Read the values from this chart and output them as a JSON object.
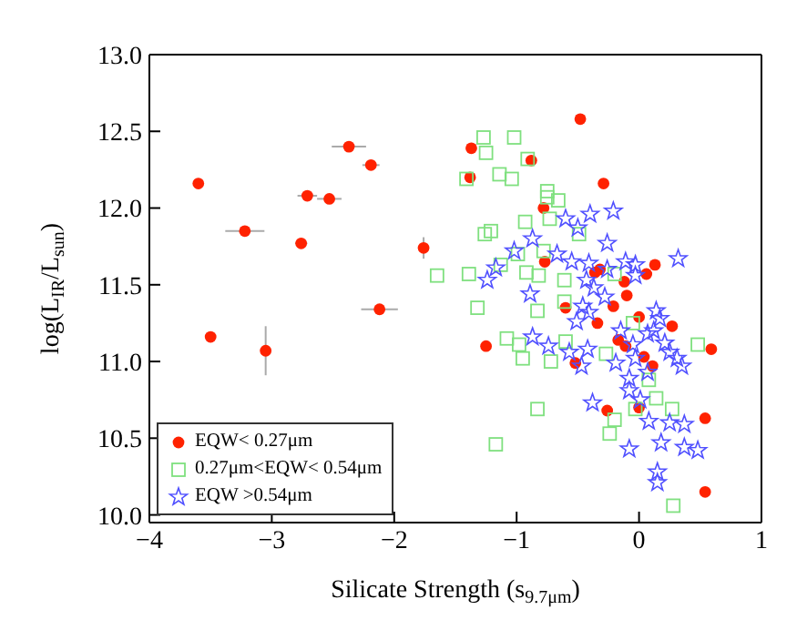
{
  "chart_data": {
    "type": "scatter",
    "xlabel": "Silicate Strength (s$_{9.7μm}$)",
    "ylabel": "log(L$_{IR}$/L$_{sun}$)",
    "xlim": [
      -4,
      1
    ],
    "ylim": [
      9.95,
      13
    ],
    "xticks": [
      -4,
      -3,
      -2,
      -1,
      0,
      1
    ],
    "yticks": [
      {
        "value": 10,
        "label": "10.0"
      },
      {
        "value": 10.5,
        "label": "10.5"
      },
      {
        "value": 11,
        "label": "11.0"
      },
      {
        "value": 11.5,
        "label": "11.5"
      },
      {
        "value": 12,
        "label": "12.0"
      },
      {
        "value": 12.5,
        "label": "12.5"
      },
      {
        "value": 13,
        "label": "13.0"
      }
    ],
    "grid": false,
    "legend": "bottom left",
    "series": [
      {
        "name": "EQW< 0.27μm",
        "color": "#ff2200",
        "marker": "circle",
        "x": [
          -3.6,
          -3.5,
          -3.22,
          -3.05,
          -2.76,
          -2.71,
          -2.53,
          -2.37,
          -2.19,
          -2.12,
          -1.76,
          -0.48,
          -1.37,
          -0.88,
          -1.38,
          -0.29,
          -0.78,
          -0.77,
          -0.32,
          -0.36,
          -0.12,
          0.06,
          0.13,
          -0.6,
          -0.21,
          -0.1,
          0,
          -0.34,
          0.27,
          -1.25,
          -0.17,
          -0.11,
          0.59,
          0.04,
          -0.52,
          0.11,
          0,
          -0.26,
          0.54,
          0.54
        ],
        "values": [
          12.16,
          11.16,
          11.85,
          11.07,
          11.77,
          12.08,
          12.06,
          12.4,
          12.28,
          11.34,
          11.74,
          12.58,
          12.39,
          12.31,
          12.2,
          12.16,
          12,
          11.65,
          11.6,
          11.58,
          11.52,
          11.57,
          11.63,
          11.35,
          11.36,
          11.43,
          11.29,
          11.25,
          11.23,
          11.1,
          11.14,
          11.1,
          11.08,
          11.03,
          10.99,
          10.97,
          10.7,
          10.68,
          10.63,
          10.15
        ],
        "xerrors": [
          null,
          null,
          0.16,
          null,
          0.05,
          0.08,
          0.1,
          0.14,
          0.07,
          0.15,
          null,
          null,
          null,
          null,
          null,
          null,
          null,
          null,
          null,
          null,
          null,
          null,
          null,
          null,
          null,
          null,
          null,
          null,
          null,
          null,
          null,
          null,
          null,
          null,
          null,
          null,
          null,
          null,
          null,
          null
        ],
        "errors": [
          null,
          null,
          null,
          0.16,
          null,
          null,
          null,
          null,
          null,
          null,
          0.07,
          null,
          null,
          null,
          null,
          null,
          null,
          null,
          null,
          null,
          null,
          null,
          null,
          null,
          null,
          null,
          null,
          null,
          null,
          null,
          null,
          null,
          null,
          null,
          null,
          null,
          null,
          null,
          null,
          null
        ]
      },
      {
        "name": "0.27μm<EQW< 0.54μm",
        "color": "#7fe07f",
        "marker": "square",
        "x": [
          -1.65,
          -1.27,
          -1.02,
          -1.25,
          -0.91,
          -1.41,
          -1.14,
          -1.04,
          -0.75,
          -0.75,
          -0.66,
          -0.73,
          -0.93,
          -1.21,
          -1.26,
          -0.49,
          -0.99,
          -0.78,
          -1.13,
          -1.39,
          -0.92,
          -0.61,
          -0.82,
          -0.2,
          -1.32,
          -0.83,
          -0.61,
          -1.08,
          -0.98,
          -0.95,
          -0.72,
          -0.6,
          -0.27,
          0.08,
          0.14,
          0.27,
          -0.83,
          -0.2,
          -0.24,
          -1.17,
          0.48,
          0.28,
          -0.05,
          -0.03
        ],
        "values": [
          11.56,
          12.46,
          12.46,
          12.36,
          12.32,
          12.19,
          12.22,
          12.19,
          12.11,
          12.07,
          12.05,
          11.93,
          11.91,
          11.85,
          11.83,
          11.83,
          11.7,
          11.72,
          11.63,
          11.57,
          11.58,
          11.53,
          11.56,
          11.57,
          11.35,
          11.33,
          11.39,
          11.15,
          11.11,
          11.02,
          11,
          11.13,
          11.05,
          10.88,
          10.76,
          10.69,
          10.69,
          10.62,
          10.53,
          10.46,
          11.11,
          10.06,
          11.25,
          10.69
        ]
      },
      {
        "name": "EQW >0.54μm",
        "color": "#5050ff",
        "marker": "star",
        "x": [
          -0.6,
          -0.4,
          -0.21,
          -0.5,
          -0.87,
          -0.26,
          -1.02,
          -0.67,
          -0.55,
          -0.41,
          -0.11,
          -0.03,
          0.32,
          -1.17,
          -1.24,
          -0.43,
          -0.26,
          -0.03,
          -0.89,
          -0.46,
          -0.37,
          -0.28,
          -0.51,
          -0.41,
          0.14,
          0.17,
          0.12,
          0.07,
          -0.74,
          -0.87,
          -0.57,
          -0.47,
          -0.42,
          -0.19,
          -0.15,
          -0.05,
          -0.03,
          0.21,
          0.25,
          0.31,
          0.35,
          0.07,
          -0.08,
          -0.08,
          -0.38,
          0.01,
          0.08,
          0.25,
          0.37,
          0.18,
          0.37,
          0.48,
          -0.08,
          0.15,
          0.15
        ],
        "values": [
          11.93,
          11.96,
          11.98,
          11.87,
          11.8,
          11.77,
          11.72,
          11.7,
          11.65,
          11.64,
          11.65,
          11.63,
          11.67,
          11.61,
          11.53,
          11.53,
          11.6,
          11.56,
          11.44,
          11.36,
          11.48,
          11.42,
          11.26,
          11.32,
          11.33,
          11.28,
          11.2,
          11.18,
          11.1,
          11.16,
          11.06,
          10.97,
          11.08,
          10.99,
          11.2,
          11.11,
          11.02,
          11.12,
          11.06,
          11.02,
          10.97,
          10.93,
          10.89,
          10.81,
          10.73,
          10.75,
          10.61,
          10.6,
          10.59,
          10.47,
          10.44,
          10.42,
          10.43,
          10.28,
          10.21
        ]
      }
    ]
  }
}
